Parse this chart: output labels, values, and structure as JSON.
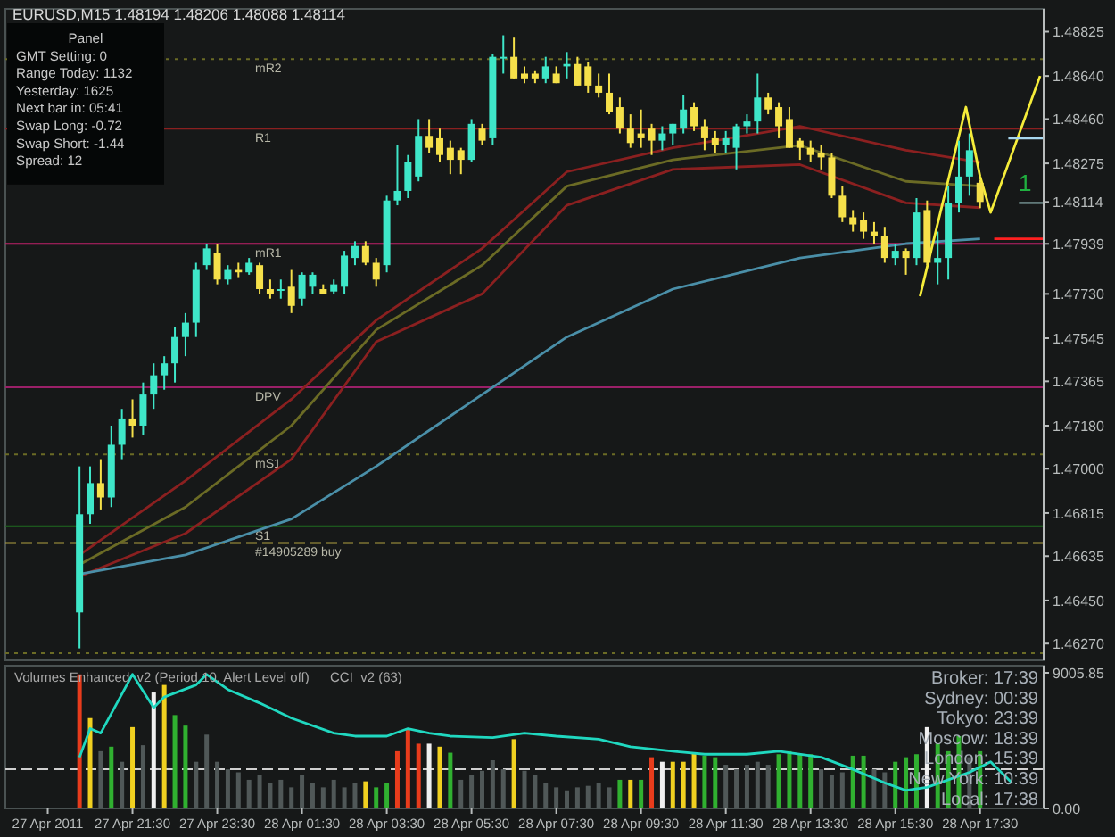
{
  "chart_data": [
    {
      "type": "candlestick",
      "title": "EURUSD,M15 1.48194 1.48206 1.48088 1.48114",
      "x": [
        "2011-04-27T20:15",
        "2011-04-27T20:30",
        "2011-04-27T20:45",
        "2011-04-27T21:00",
        "2011-04-27T21:15",
        "2011-04-27T21:30",
        "2011-04-27T21:45",
        "2011-04-27T22:00",
        "2011-04-27T22:15",
        "2011-04-27T22:30",
        "2011-04-27T22:45",
        "2011-04-27T23:00",
        "2011-04-27T23:15",
        "2011-04-27T23:30",
        "2011-04-27T23:45",
        "2011-04-28T00:00",
        "2011-04-28T00:15",
        "2011-04-28T00:30",
        "2011-04-28T00:45",
        "2011-04-28T01:00",
        "2011-04-28T01:15",
        "2011-04-28T01:30",
        "2011-04-28T01:45",
        "2011-04-28T02:00",
        "2011-04-28T02:15",
        "2011-04-28T02:30",
        "2011-04-28T02:45",
        "2011-04-28T03:00",
        "2011-04-28T03:15",
        "2011-04-28T03:30",
        "2011-04-28T03:45",
        "2011-04-28T04:00",
        "2011-04-28T04:15",
        "2011-04-28T04:30",
        "2011-04-28T04:45",
        "2011-04-28T05:00",
        "2011-04-28T05:15",
        "2011-04-28T05:30",
        "2011-04-28T05:45",
        "2011-04-28T06:00",
        "2011-04-28T06:15",
        "2011-04-28T06:30",
        "2011-04-28T06:45",
        "2011-04-28T07:00",
        "2011-04-28T07:15",
        "2011-04-28T07:30",
        "2011-04-28T07:45",
        "2011-04-28T08:00",
        "2011-04-28T08:15",
        "2011-04-28T08:30",
        "2011-04-28T08:45",
        "2011-04-28T09:00",
        "2011-04-28T09:15",
        "2011-04-28T09:30",
        "2011-04-28T09:45",
        "2011-04-28T10:00",
        "2011-04-28T10:15",
        "2011-04-28T10:30",
        "2011-04-28T10:45",
        "2011-04-28T11:00",
        "2011-04-28T11:15",
        "2011-04-28T11:30",
        "2011-04-28T11:45",
        "2011-04-28T12:00",
        "2011-04-28T12:15",
        "2011-04-28T12:30",
        "2011-04-28T12:45",
        "2011-04-28T13:00",
        "2011-04-28T13:15",
        "2011-04-28T13:30",
        "2011-04-28T13:45",
        "2011-04-28T14:00",
        "2011-04-28T14:15",
        "2011-04-28T14:30",
        "2011-04-28T14:45",
        "2011-04-28T15:00",
        "2011-04-28T15:15",
        "2011-04-28T15:30",
        "2011-04-28T15:45",
        "2011-04-28T16:00",
        "2011-04-28T16:15",
        "2011-04-28T16:30",
        "2011-04-28T16:45",
        "2011-04-28T17:00",
        "2011-04-28T17:15",
        "2011-04-28T17:30"
      ],
      "ohlc": [
        [
          1.464,
          1.4701,
          1.4625,
          1.4681
        ],
        [
          1.4681,
          1.4701,
          1.4677,
          1.4694
        ],
        [
          1.4694,
          1.4704,
          1.4683,
          1.4688
        ],
        [
          1.4688,
          1.4718,
          1.4684,
          1.471
        ],
        [
          1.471,
          1.4725,
          1.4704,
          1.4721
        ],
        [
          1.4721,
          1.4729,
          1.4713,
          1.4718
        ],
        [
          1.4718,
          1.4736,
          1.4714,
          1.4731
        ],
        [
          1.4731,
          1.4744,
          1.4725,
          1.4739
        ],
        [
          1.4739,
          1.4747,
          1.4733,
          1.4744
        ],
        [
          1.4744,
          1.4759,
          1.4736,
          1.4755
        ],
        [
          1.4755,
          1.4765,
          1.4747,
          1.4761
        ],
        [
          1.4761,
          1.4786,
          1.4755,
          1.4783
        ],
        [
          1.4785,
          1.4794,
          1.4783,
          1.4792
        ],
        [
          1.479,
          1.4794,
          1.4777,
          1.4779
        ],
        [
          1.4779,
          1.4785,
          1.4777,
          1.4783
        ],
        [
          1.4783,
          1.4786,
          1.478,
          1.4782
        ],
        [
          1.4782,
          1.4788,
          1.4781,
          1.4786
        ],
        [
          1.4785,
          1.4786,
          1.4773,
          1.4775
        ],
        [
          1.4775,
          1.4779,
          1.4771,
          1.4773
        ],
        [
          1.4775,
          1.4779,
          1.4771,
          1.4775
        ],
        [
          1.4776,
          1.4783,
          1.4765,
          1.4768
        ],
        [
          1.4771,
          1.4782,
          1.4768,
          1.4781
        ],
        [
          1.4776,
          1.4782,
          1.4773,
          1.4781
        ],
        [
          1.4775,
          1.4777,
          1.4773,
          1.4773
        ],
        [
          1.4774,
          1.4779,
          1.4773,
          1.4777
        ],
        [
          1.4776,
          1.4791,
          1.4773,
          1.4789
        ],
        [
          1.4788,
          1.4795,
          1.4785,
          1.4793
        ],
        [
          1.4793,
          1.4795,
          1.4785,
          1.4786
        ],
        [
          1.4786,
          1.4788,
          1.4776,
          1.4779
        ],
        [
          1.4785,
          1.4814,
          1.4782,
          1.4812
        ],
        [
          1.4812,
          1.4835,
          1.481,
          1.4816
        ],
        [
          1.4816,
          1.4831,
          1.4813,
          1.4828
        ],
        [
          1.4822,
          1.4846,
          1.482,
          1.4839
        ],
        [
          1.4839,
          1.4846,
          1.4832,
          1.4834
        ],
        [
          1.4838,
          1.4842,
          1.4828,
          1.4831
        ],
        [
          1.4834,
          1.4837,
          1.4823,
          1.4829
        ],
        [
          1.4833,
          1.4834,
          1.4823,
          1.4829
        ],
        [
          1.4829,
          1.4846,
          1.4828,
          1.4844
        ],
        [
          1.4842,
          1.4844,
          1.4835,
          1.4837
        ],
        [
          1.4838,
          1.4873,
          1.4835,
          1.4872
        ],
        [
          1.4872,
          1.4881,
          1.4865,
          1.4872
        ],
        [
          1.4872,
          1.488,
          1.4863,
          1.4863
        ],
        [
          1.4865,
          1.4868,
          1.4861,
          1.4863
        ],
        [
          1.4865,
          1.4866,
          1.4861,
          1.4863
        ],
        [
          1.4863,
          1.4872,
          1.4861,
          1.4868
        ],
        [
          1.4865,
          1.4868,
          1.4861,
          1.4861
        ],
        [
          1.4868,
          1.4874,
          1.4863,
          1.4869
        ],
        [
          1.4869,
          1.4872,
          1.486,
          1.486
        ],
        [
          1.4868,
          1.487,
          1.4857,
          1.486
        ],
        [
          1.486,
          1.4865,
          1.4855,
          1.4857
        ],
        [
          1.4857,
          1.4865,
          1.4848,
          1.4849
        ],
        [
          1.4851,
          1.4855,
          1.484,
          1.4842
        ],
        [
          1.4842,
          1.4848,
          1.4834,
          1.4836
        ],
        [
          1.484,
          1.485,
          1.4834,
          1.4838
        ],
        [
          1.4842,
          1.4844,
          1.4831,
          1.4837
        ],
        [
          1.4837,
          1.4843,
          1.4833,
          1.484
        ],
        [
          1.484,
          1.4844,
          1.4835,
          1.4844
        ],
        [
          1.4842,
          1.4856,
          1.484,
          1.485
        ],
        [
          1.4851,
          1.4853,
          1.4841,
          1.4843
        ],
        [
          1.4843,
          1.4846,
          1.4833,
          1.4838
        ],
        [
          1.4838,
          1.4841,
          1.4832,
          1.4835
        ],
        [
          1.4835,
          1.4841,
          1.4832,
          1.4838
        ],
        [
          1.4834,
          1.4844,
          1.4825,
          1.4843
        ],
        [
          1.4843,
          1.4848,
          1.484,
          1.4845
        ],
        [
          1.4845,
          1.4865,
          1.484,
          1.4855
        ],
        [
          1.4855,
          1.4857,
          1.4848,
          1.485
        ],
        [
          1.4851,
          1.4853,
          1.4838,
          1.4843
        ],
        [
          1.4846,
          1.4851,
          1.4834,
          1.4834
        ],
        [
          1.4837,
          1.4838,
          1.4829,
          1.4834
        ],
        [
          1.4834,
          1.4837,
          1.4828,
          1.4831
        ],
        [
          1.4832,
          1.4835,
          1.4825,
          1.483
        ],
        [
          1.483,
          1.4832,
          1.4813,
          1.4814
        ],
        [
          1.4814,
          1.4818,
          1.4803,
          1.4805
        ],
        [
          1.4805,
          1.4808,
          1.4799,
          1.4802
        ],
        [
          1.4804,
          1.4807,
          1.4796,
          1.4799
        ],
        [
          1.4799,
          1.4803,
          1.4794,
          1.4797
        ],
        [
          1.4797,
          1.4801,
          1.4786,
          1.4788
        ],
        [
          1.4788,
          1.4794,
          1.4785,
          1.4791
        ],
        [
          1.4791,
          1.4792,
          1.4781,
          1.4788
        ],
        [
          1.4788,
          1.4813,
          1.4785,
          1.4807
        ],
        [
          1.4808,
          1.4812,
          1.4785,
          1.4786
        ],
        [
          1.4786,
          1.4799,
          1.4777,
          1.4788
        ],
        [
          1.4788,
          1.4818,
          1.4779,
          1.4811
        ],
        [
          1.4811,
          1.4837,
          1.4807,
          1.4822
        ],
        [
          1.4822,
          1.484,
          1.4814,
          1.4833
        ],
        [
          1.48194,
          1.48206,
          1.48088,
          1.48114
        ]
      ],
      "series": [
        {
          "type": "line",
          "color": "#8b2020",
          "x": [
            "2011-04-27T20:15",
            "2011-04-27T22:45",
            "2011-04-28T01:15",
            "2011-04-28T03:15",
            "2011-04-28T05:45",
            "2011-04-28T07:45",
            "2011-04-28T10:15",
            "2011-04-28T13:15",
            "2011-04-28T15:45",
            "2011-04-28T17:30"
          ],
          "values": [
            1.4664,
            1.4695,
            1.4729,
            1.4762,
            1.4792,
            1.4824,
            1.4834,
            1.4843,
            1.4833,
            1.4828
          ]
        },
        {
          "type": "line",
          "color": "#6b6b25",
          "x": [
            "2011-04-27T20:15",
            "2011-04-27T22:45",
            "2011-04-28T01:15",
            "2011-04-28T03:15",
            "2011-04-28T05:45",
            "2011-04-28T07:45",
            "2011-04-28T10:15",
            "2011-04-28T13:15",
            "2011-04-28T15:45",
            "2011-04-28T17:30"
          ],
          "values": [
            1.466,
            1.4684,
            1.4718,
            1.4758,
            1.4785,
            1.4818,
            1.4829,
            1.4835,
            1.482,
            1.4818
          ]
        },
        {
          "type": "line",
          "color": "#8b2020",
          "x": [
            "2011-04-27T20:15",
            "2011-04-27T22:45",
            "2011-04-28T01:15",
            "2011-04-28T03:15",
            "2011-04-28T05:45",
            "2011-04-28T07:45",
            "2011-04-28T10:15",
            "2011-04-28T13:15",
            "2011-04-28T15:45",
            "2011-04-28T17:30"
          ],
          "values": [
            1.4655,
            1.4673,
            1.4704,
            1.4753,
            1.4773,
            1.481,
            1.4825,
            1.4827,
            1.4811,
            1.4809
          ]
        },
        {
          "type": "line",
          "color": "#4a8fa8",
          "x": [
            "2011-04-27T20:15",
            "2011-04-27T22:45",
            "2011-04-28T01:15",
            "2011-04-28T03:15",
            "2011-04-28T05:45",
            "2011-04-28T07:45",
            "2011-04-28T10:15",
            "2011-04-28T13:15",
            "2011-04-28T15:45",
            "2011-04-28T17:30"
          ],
          "values": [
            1.4656,
            1.4664,
            1.4679,
            1.4701,
            1.4731,
            1.4755,
            1.4775,
            1.4788,
            1.4794,
            1.4796
          ]
        },
        {
          "type": "line",
          "color": "#f5ec3a",
          "x": [
            "2011-04-28T16:05",
            "2011-04-28T17:10",
            "2011-04-28T17:30",
            "2011-04-28T17:45",
            "2011-04-28T18:55"
          ],
          "values": [
            1.4772,
            1.4851,
            1.4822,
            1.4807,
            1.4864
          ]
        },
        {
          "type": "line",
          "color": "#a8d8f0",
          "x": [
            "2011-04-28T18:10",
            "2011-04-28T19:00"
          ],
          "values": [
            1.4838,
            1.4838
          ]
        },
        {
          "type": "line",
          "color": "#ff2020",
          "x": [
            "2011-04-28T17:50",
            "2011-04-28T19:00"
          ],
          "values": [
            1.4796,
            1.4796
          ]
        },
        {
          "type": "line",
          "color": "#607878",
          "x": [
            "2011-04-28T18:25",
            "2011-04-28T19:00"
          ],
          "values": [
            1.4811,
            1.4811
          ]
        }
      ],
      "xlim": [
        "2011-04-27T18:30",
        "2011-04-28T19:00"
      ],
      "ylim": [
        1.462,
        1.4892
      ],
      "yticks": [
        {
          "value": 1.48825,
          "label": "1.48825"
        },
        {
          "value": 1.4864,
          "label": "1.48640"
        },
        {
          "value": 1.4846,
          "label": "1.48460"
        },
        {
          "value": 1.48275,
          "label": "1.48275"
        },
        {
          "value": 1.48114,
          "label": "1.48114"
        },
        {
          "value": 1.47939,
          "label": "1.47939"
        },
        {
          "value": 1.4773,
          "label": "1.47730"
        },
        {
          "value": 1.47545,
          "label": "1.47545"
        },
        {
          "value": 1.47365,
          "label": "1.47365"
        },
        {
          "value": 1.4718,
          "label": "1.47180"
        },
        {
          "value": 1.47,
          "label": "1.47000"
        },
        {
          "value": 1.46815,
          "label": "1.46815"
        },
        {
          "value": 1.46635,
          "label": "1.46635"
        },
        {
          "value": 1.4645,
          "label": "1.46450"
        },
        {
          "value": 1.4627,
          "label": "1.46270"
        }
      ],
      "tick_labels": "y",
      "ref_lines": [
        {
          "axis": "y",
          "value": 1.4871,
          "label": "mR2",
          "color": "#6b6b25",
          "line_style": "dotted"
        },
        {
          "axis": "y",
          "value": 1.4842,
          "label": "R1",
          "color": "#8b2020",
          "line_style": "solid"
        },
        {
          "axis": "y",
          "value": 1.47939,
          "label": "mR1",
          "color": "#c0206a",
          "line_style": "solid"
        },
        {
          "axis": "y",
          "value": 1.4734,
          "label": "DPV",
          "color": "#9a2068",
          "line_style": "solid"
        },
        {
          "axis": "y",
          "value": 1.4706,
          "label": "mS1",
          "color": "#6b6b25",
          "line_style": "dotted"
        },
        {
          "axis": "y",
          "value": 1.4676,
          "label": "S1",
          "color": "#1f6b1f",
          "line_style": "solid"
        },
        {
          "axis": "y",
          "value": 1.4669,
          "label": "#14905289 buy",
          "color": "#b0a040",
          "line_style": "dashed"
        },
        {
          "axis": "y",
          "value": 1.4623,
          "color": "#6b6b25",
          "line_style": "dotted"
        }
      ],
      "annotations": [
        "Panel",
        "GMT Setting: 0",
        "Range Today: 1132",
        "Yesterday: 1625",
        "Next bar in: 05:41",
        "Swap Long: -0.72",
        "Swap Short: -1.44",
        "Spread: 12",
        "1"
      ]
    },
    {
      "type": "bar",
      "x": [
        "2011-04-27T20:15",
        "2011-04-27T20:30",
        "2011-04-27T20:45",
        "2011-04-27T21:00",
        "2011-04-27T21:15",
        "2011-04-27T21:30",
        "2011-04-27T21:45",
        "2011-04-27T22:00",
        "2011-04-27T22:15",
        "2011-04-27T22:30",
        "2011-04-27T22:45",
        "2011-04-27T23:00",
        "2011-04-27T23:15",
        "2011-04-27T23:30",
        "2011-04-27T23:45",
        "2011-04-28T00:00",
        "2011-04-28T00:15",
        "2011-04-28T00:30",
        "2011-04-28T00:45",
        "2011-04-28T01:00",
        "2011-04-28T01:15",
        "2011-04-28T01:30",
        "2011-04-28T01:45",
        "2011-04-28T02:00",
        "2011-04-28T02:15",
        "2011-04-28T02:30",
        "2011-04-28T02:45",
        "2011-04-28T03:00",
        "2011-04-28T03:15",
        "2011-04-28T03:30",
        "2011-04-28T03:45",
        "2011-04-28T04:00",
        "2011-04-28T04:15",
        "2011-04-28T04:30",
        "2011-04-28T04:45",
        "2011-04-28T05:00",
        "2011-04-28T05:15",
        "2011-04-28T05:30",
        "2011-04-28T05:45",
        "2011-04-28T06:00",
        "2011-04-28T06:15",
        "2011-04-28T06:30",
        "2011-04-28T06:45",
        "2011-04-28T07:00",
        "2011-04-28T07:15",
        "2011-04-28T07:30",
        "2011-04-28T07:45",
        "2011-04-28T08:00",
        "2011-04-28T08:15",
        "2011-04-28T08:30",
        "2011-04-28T08:45",
        "2011-04-28T09:00",
        "2011-04-28T09:15",
        "2011-04-28T09:30",
        "2011-04-28T09:45",
        "2011-04-28T10:00",
        "2011-04-28T10:15",
        "2011-04-28T10:30",
        "2011-04-28T10:45",
        "2011-04-28T11:00",
        "2011-04-28T11:15",
        "2011-04-28T11:30",
        "2011-04-28T11:45",
        "2011-04-28T12:00",
        "2011-04-28T12:15",
        "2011-04-28T12:30",
        "2011-04-28T12:45",
        "2011-04-28T13:00",
        "2011-04-28T13:15",
        "2011-04-28T13:30",
        "2011-04-28T13:45",
        "2011-04-28T14:00",
        "2011-04-28T14:15",
        "2011-04-28T14:30",
        "2011-04-28T14:45",
        "2011-04-28T15:00",
        "2011-04-28T15:15",
        "2011-04-28T15:30",
        "2011-04-28T15:45",
        "2011-04-28T16:00",
        "2011-04-28T16:15",
        "2011-04-28T16:30",
        "2011-04-28T16:45",
        "2011-04-28T17:00",
        "2011-04-28T17:15",
        "2011-04-28T17:30"
      ],
      "series": [
        {
          "type": "bar",
          "values": [
            8900,
            6000,
            3800,
            4100,
            3100,
            5400,
            4200,
            7700,
            8200,
            6200,
            5500,
            3100,
            4900,
            3100,
            2600,
            2400,
            1900,
            2200,
            1700,
            1900,
            1400,
            2200,
            1700,
            1400,
            1900,
            1400,
            1700,
            1800,
            1400,
            1700,
            3800,
            5300,
            4300,
            4300,
            4100,
            3700,
            1900,
            2200,
            2500,
            3200,
            2600,
            4600,
            2500,
            2200,
            1700,
            1400,
            1200,
            1400,
            1500,
            1700,
            1400,
            1900,
            1900,
            1900,
            3400,
            3100,
            3100,
            3100,
            3700,
            3500,
            3400,
            2900,
            2600,
            2900,
            3100,
            2900,
            3600,
            3800,
            3600,
            3600,
            2600,
            2200,
            2400,
            3500,
            3500,
            2600,
            2400,
            3100,
            3400,
            3600,
            5400,
            4300,
            3800,
            4800,
            3400,
            3800
          ],
          "colors": [
            "#e83c1c",
            "#f0d020",
            "#505858",
            "#30b030",
            "#505858",
            "#f0d020",
            "#505858",
            "#f0f0f0",
            "#f0d020",
            "#30b030",
            "#30b030",
            "#505858",
            "#505858",
            "#505858",
            "#505858",
            "#505858",
            "#505858",
            "#505858",
            "#505858",
            "#505858",
            "#505858",
            "#505858",
            "#505858",
            "#505858",
            "#505858",
            "#505858",
            "#505858",
            "#f0d020",
            "#30b030",
            "#30b030",
            "#e83c1c",
            "#e83c1c",
            "#e83c1c",
            "#f0f0f0",
            "#f0d020",
            "#30b030",
            "#505858",
            "#505858",
            "#505858",
            "#505858",
            "#505858",
            "#f0d020",
            "#505858",
            "#505858",
            "#505858",
            "#505858",
            "#505858",
            "#505858",
            "#505858",
            "#505858",
            "#505858",
            "#30b030",
            "#f0d020",
            "#30b030",
            "#e83c1c",
            "#f0f0f0",
            "#f0d020",
            "#f0d020",
            "#f0d020",
            "#30b030",
            "#30b030",
            "#505858",
            "#505858",
            "#505858",
            "#505858",
            "#505858",
            "#30b030",
            "#30b030",
            "#30b030",
            "#30b030",
            "#505858",
            "#505858",
            "#505858",
            "#30b030",
            "#30b030",
            "#505858",
            "#505858",
            "#30b030",
            "#30b030",
            "#30b030",
            "#f0f0f0",
            "#30b030",
            "#30b030",
            "#30b030",
            "#505858",
            "#30b030"
          ]
        },
        {
          "type": "line",
          "color": "#20d8c0",
          "x": [
            "2011-04-27T20:15",
            "2011-04-27T20:30",
            "2011-04-27T20:45",
            "2011-04-27T21:30",
            "2011-04-27T22:00",
            "2011-04-27T22:15",
            "2011-04-27T23:00",
            "2011-04-27T23:15",
            "2011-04-27T23:45",
            "2011-04-28T00:30",
            "2011-04-28T01:15",
            "2011-04-28T02:15",
            "2011-04-28T02:45",
            "2011-04-28T03:30",
            "2011-04-28T04:00",
            "2011-04-28T04:30",
            "2011-04-28T05:00",
            "2011-04-28T06:00",
            "2011-04-28T06:45",
            "2011-04-28T07:30",
            "2011-04-28T08:30",
            "2011-04-28T09:15",
            "2011-04-28T10:15",
            "2011-04-28T11:00",
            "2011-04-28T12:00",
            "2011-04-28T12:45",
            "2011-04-28T13:45",
            "2011-04-28T14:30",
            "2011-04-28T15:15",
            "2011-04-28T15:45",
            "2011-04-28T16:15",
            "2011-04-28T16:45",
            "2011-04-28T17:15",
            "2011-04-28T17:45",
            "2011-04-28T18:15"
          ],
          "values": [
            3400,
            5300,
            5000,
            8900,
            6700,
            7400,
            8200,
            8900,
            7900,
            7000,
            6000,
            5000,
            4800,
            4800,
            5300,
            5000,
            4800,
            4700,
            5000,
            4800,
            4600,
            4100,
            3800,
            3600,
            3600,
            3800,
            3400,
            2600,
            1700,
            1200,
            1400,
            1900,
            2400,
            3100,
            1700
          ]
        }
      ],
      "xlim": [
        "2011-04-27T18:30",
        "2011-04-28T19:00"
      ],
      "xticks": [
        {
          "value": "2011-04-27T19:30",
          "label": "27 Apr 2011"
        },
        {
          "value": "2011-04-27T21:30",
          "label": "27 Apr 21:30"
        },
        {
          "value": "2011-04-27T23:30",
          "label": "27 Apr 23:30"
        },
        {
          "value": "2011-04-28T01:30",
          "label": "28 Apr 01:30"
        },
        {
          "value": "2011-04-28T03:30",
          "label": "28 Apr 03:30"
        },
        {
          "value": "2011-04-28T05:30",
          "label": "28 Apr 05:30"
        },
        {
          "value": "2011-04-28T07:30",
          "label": "28 Apr 07:30"
        },
        {
          "value": "2011-04-28T09:30",
          "label": "28 Apr 09:30"
        },
        {
          "value": "2011-04-28T11:30",
          "label": "28 Apr 11:30"
        },
        {
          "value": "2011-04-28T13:30",
          "label": "28 Apr 13:30"
        },
        {
          "value": "2011-04-28T15:30",
          "label": "28 Apr 15:30"
        },
        {
          "value": "2011-04-28T17:30",
          "label": "28 Apr 17:30"
        }
      ],
      "ylim": [
        0,
        9480
      ],
      "yticks": [
        9005.85,
        {
          "value": 0,
          "label": "0.00"
        }
      ],
      "ref_lines": [
        {
          "axis": "y",
          "value": 2600,
          "color": "#d0d0d0",
          "line_style": "dashed"
        }
      ],
      "annotations": [
        "Volumes Enhanced_v2 (Period 10, Alert Level off)",
        "CCI_v2 (63)",
        "Broker: 17:39",
        "Sydney: 00:39",
        "Tokyo: 23:39",
        "Moscow: 18:39",
        "London: 15:39",
        "New York: 10:39",
        "Local: 17:38"
      ]
    }
  ]
}
